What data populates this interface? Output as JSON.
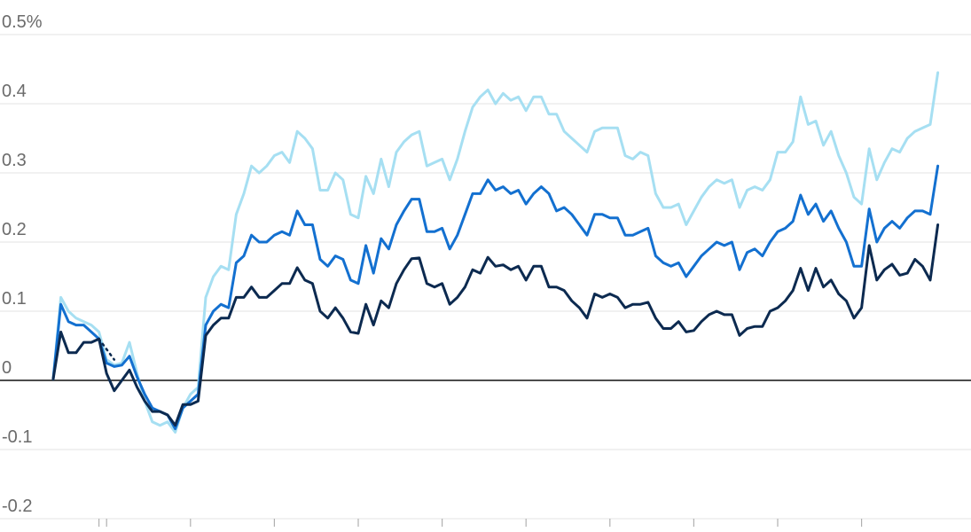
{
  "chart_data": {
    "type": "line",
    "title": "",
    "xlabel": "",
    "ylabel": "",
    "ylim": [
      -0.2,
      0.5
    ],
    "yticks": [
      {
        "value": 0.5,
        "label": "0.5%"
      },
      {
        "value": 0.4,
        "label": "0.4"
      },
      {
        "value": 0.3,
        "label": "0.3"
      },
      {
        "value": 0.2,
        "label": "0.2"
      },
      {
        "value": 0.1,
        "label": "0.1"
      },
      {
        "value": 0,
        "label": "0"
      },
      {
        "value": -0.1,
        "label": "-0.1"
      },
      {
        "value": -0.2,
        "label": "-0.2"
      }
    ],
    "grid": true,
    "xlim": [
      0,
      120
    ],
    "xticks": [
      6,
      7,
      18,
      29,
      40,
      51,
      62,
      73,
      84,
      95,
      106
    ],
    "series": [
      {
        "color": "#a6dff2",
        "values": [
          0.002,
          0.12,
          0.1,
          0.09,
          0.085,
          0.08,
          0.07,
          0.03,
          0.022,
          0.025,
          0.055,
          0.01,
          -0.03,
          -0.06,
          -0.065,
          -0.06,
          -0.075,
          -0.04,
          -0.02,
          -0.01,
          0.12,
          0.15,
          0.165,
          0.16,
          0.24,
          0.27,
          0.31,
          0.3,
          0.31,
          0.325,
          0.33,
          0.315,
          0.36,
          0.35,
          0.335,
          0.275,
          0.275,
          0.3,
          0.29,
          0.24,
          0.235,
          0.295,
          0.27,
          0.32,
          0.28,
          0.33,
          0.345,
          0.355,
          0.36,
          0.31,
          0.315,
          0.32,
          0.29,
          0.32,
          0.36,
          0.395,
          0.41,
          0.42,
          0.4,
          0.415,
          0.405,
          0.41,
          0.39,
          0.41,
          0.41,
          0.385,
          0.385,
          0.36,
          0.35,
          0.34,
          0.33,
          0.36,
          0.365,
          0.365,
          0.365,
          0.325,
          0.32,
          0.33,
          0.325,
          0.27,
          0.25,
          0.25,
          0.255,
          0.225,
          0.245,
          0.265,
          0.28,
          0.29,
          0.285,
          0.29,
          0.25,
          0.275,
          0.28,
          0.275,
          0.29,
          0.33,
          0.33,
          0.345,
          0.41,
          0.37,
          0.375,
          0.34,
          0.36,
          0.325,
          0.3,
          0.265,
          0.255,
          0.335,
          0.29,
          0.315,
          0.335,
          0.33,
          0.35,
          0.36,
          0.365,
          0.37,
          0.445
        ]
      },
      {
        "color": "#1370d0",
        "values": [
          0.002,
          0.11,
          0.085,
          0.08,
          0.08,
          0.07,
          0.06,
          0.025,
          0.02,
          0.022,
          0.035,
          0.005,
          -0.02,
          -0.04,
          -0.045,
          -0.05,
          -0.07,
          -0.04,
          -0.03,
          -0.02,
          0.08,
          0.1,
          0.11,
          0.105,
          0.17,
          0.18,
          0.21,
          0.2,
          0.2,
          0.21,
          0.215,
          0.21,
          0.245,
          0.225,
          0.225,
          0.175,
          0.165,
          0.18,
          0.175,
          0.145,
          0.14,
          0.195,
          0.155,
          0.205,
          0.19,
          0.225,
          0.245,
          0.262,
          0.262,
          0.215,
          0.215,
          0.22,
          0.19,
          0.21,
          0.24,
          0.27,
          0.27,
          0.29,
          0.275,
          0.28,
          0.27,
          0.275,
          0.255,
          0.27,
          0.28,
          0.27,
          0.245,
          0.25,
          0.24,
          0.225,
          0.21,
          0.24,
          0.24,
          0.235,
          0.235,
          0.21,
          0.21,
          0.215,
          0.22,
          0.18,
          0.17,
          0.165,
          0.17,
          0.15,
          0.165,
          0.18,
          0.19,
          0.2,
          0.195,
          0.2,
          0.16,
          0.185,
          0.19,
          0.18,
          0.2,
          0.215,
          0.22,
          0.23,
          0.268,
          0.24,
          0.255,
          0.23,
          0.245,
          0.22,
          0.2,
          0.165,
          0.165,
          0.248,
          0.2,
          0.22,
          0.23,
          0.22,
          0.235,
          0.245,
          0.245,
          0.24,
          0.31
        ]
      },
      {
        "color": "#0c2a50",
        "values": [
          0.002,
          0.07,
          0.04,
          0.04,
          0.055,
          0.055,
          0.06,
          0.01,
          -0.015,
          0.0,
          0.015,
          -0.01,
          -0.03,
          -0.045,
          -0.045,
          -0.05,
          -0.065,
          -0.035,
          -0.035,
          -0.03,
          0.065,
          0.08,
          0.09,
          0.09,
          0.12,
          0.12,
          0.135,
          0.12,
          0.12,
          0.13,
          0.14,
          0.14,
          0.163,
          0.145,
          0.14,
          0.1,
          0.09,
          0.105,
          0.09,
          0.07,
          0.068,
          0.11,
          0.08,
          0.115,
          0.105,
          0.14,
          0.16,
          0.176,
          0.177,
          0.14,
          0.135,
          0.14,
          0.11,
          0.12,
          0.135,
          0.16,
          0.155,
          0.178,
          0.165,
          0.167,
          0.16,
          0.165,
          0.145,
          0.165,
          0.165,
          0.135,
          0.135,
          0.13,
          0.115,
          0.105,
          0.09,
          0.125,
          0.12,
          0.125,
          0.12,
          0.105,
          0.11,
          0.11,
          0.113,
          0.09,
          0.075,
          0.075,
          0.085,
          0.07,
          0.072,
          0.085,
          0.095,
          0.1,
          0.095,
          0.095,
          0.065,
          0.075,
          0.078,
          0.078,
          0.1,
          0.105,
          0.115,
          0.13,
          0.162,
          0.13,
          0.162,
          0.135,
          0.145,
          0.125,
          0.115,
          0.09,
          0.105,
          0.195,
          0.145,
          0.16,
          0.168,
          0.152,
          0.155,
          0.175,
          0.165,
          0.145,
          0.225
        ]
      }
    ],
    "dotted_segment": {
      "color": "#0c2a50",
      "values": [
        0.06,
        0.045,
        0.03
      ]
    }
  }
}
